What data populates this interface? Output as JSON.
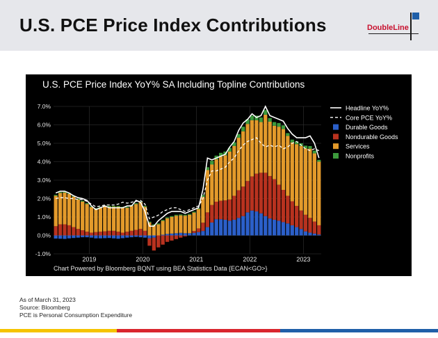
{
  "page": {
    "title": "U.S. PCE Price Index Contributions",
    "logo_text": "DoubleLine",
    "brand_colors": {
      "red": "#c8102e",
      "blue": "#1f5fa8",
      "yellow": "#f5c400"
    }
  },
  "footnotes": [
    "As of March 31, 2023",
    "Source: Bloomberg",
    "PCE is Personal Consumption Expenditure"
  ],
  "chart_data": {
    "type": "bar",
    "title": "U.S. PCE Price Index YoY% SA Including Topline Contributions",
    "source_note": "Chart Powered by Bloomberg BQNT using BEA Statistics Data   {ECAN<GO>}",
    "ylim": [
      -1.0,
      7.0
    ],
    "yticks": [
      "7.0%",
      "6.0%",
      "5.0%",
      "4.0%",
      "3.0%",
      "2.0%",
      "1.0%",
      "0.0%",
      "-1.0%"
    ],
    "ytick_values": [
      7,
      6,
      5,
      4,
      3,
      2,
      1,
      0,
      -1
    ],
    "xticks": [
      {
        "label": "2019",
        "index": 8
      },
      {
        "label": "2020",
        "index": 20
      },
      {
        "label": "2021",
        "index": 32
      },
      {
        "label": "2022",
        "index": 44
      },
      {
        "label": "2023",
        "index": 56
      }
    ],
    "legend": [
      {
        "name": "Headline YoY%",
        "kind": "line",
        "color": "#ffffff"
      },
      {
        "name": "Core PCE YoY%",
        "kind": "dash",
        "color": "#ffffff"
      },
      {
        "name": "Durable Goods",
        "kind": "box",
        "color": "#2b5fc9"
      },
      {
        "name": "Nondurable Goods",
        "kind": "box",
        "color": "#b8321f"
      },
      {
        "name": "Services",
        "kind": "box",
        "color": "#e39a2b"
      },
      {
        "name": "Nonprofits",
        "kind": "box",
        "color": "#3c9a3c"
      }
    ],
    "series": [
      {
        "name": "Durable Goods",
        "values": [
          -0.17,
          -0.18,
          -0.19,
          -0.16,
          -0.14,
          -0.12,
          -0.1,
          -0.1,
          -0.12,
          -0.16,
          -0.16,
          -0.15,
          -0.14,
          -0.16,
          -0.18,
          -0.15,
          -0.12,
          -0.1,
          -0.08,
          -0.1,
          -0.12,
          -0.16,
          -0.12,
          0.0,
          0.04,
          0.08,
          0.1,
          0.12,
          0.14,
          0.12,
          0.12,
          0.14,
          0.18,
          0.24,
          0.45,
          0.7,
          0.88,
          0.88,
          0.85,
          0.8,
          0.85,
          0.95,
          1.05,
          1.25,
          1.35,
          1.3,
          1.2,
          1.05,
          0.92,
          0.85,
          0.8,
          0.72,
          0.65,
          0.55,
          0.45,
          0.35,
          0.22,
          0.15,
          0.1,
          0.05
        ]
      },
      {
        "name": "Nondurable Goods",
        "values": [
          0.5,
          0.6,
          0.6,
          0.55,
          0.45,
          0.35,
          0.28,
          0.2,
          0.15,
          0.18,
          0.2,
          0.22,
          0.25,
          0.25,
          0.2,
          0.15,
          0.2,
          0.25,
          0.3,
          0.35,
          0.25,
          -0.4,
          -0.7,
          -0.65,
          -0.5,
          -0.35,
          -0.28,
          -0.2,
          -0.12,
          -0.05,
          0.0,
          0.1,
          0.2,
          0.45,
          0.8,
          0.95,
          0.95,
          1.0,
          1.05,
          1.15,
          1.3,
          1.5,
          1.6,
          1.7,
          1.85,
          2.05,
          2.2,
          2.35,
          2.3,
          2.2,
          1.95,
          1.75,
          1.5,
          1.3,
          1.15,
          1.0,
          0.9,
          0.8,
          0.65,
          0.5
        ]
      },
      {
        "name": "Services",
        "values": [
          1.65,
          1.7,
          1.72,
          1.7,
          1.65,
          1.6,
          1.55,
          1.5,
          1.38,
          1.25,
          1.3,
          1.35,
          1.3,
          1.3,
          1.35,
          1.35,
          1.3,
          1.35,
          1.4,
          1.45,
          1.3,
          0.7,
          0.55,
          0.6,
          0.75,
          0.85,
          0.9,
          0.95,
          0.95,
          0.95,
          1.0,
          1.0,
          1.05,
          1.4,
          2.3,
          2.2,
          2.3,
          2.4,
          2.45,
          2.6,
          2.7,
          2.85,
          3.0,
          3.1,
          3.05,
          2.9,
          2.75,
          3.15,
          2.95,
          2.9,
          3.15,
          3.3,
          3.25,
          3.2,
          3.35,
          3.5,
          3.6,
          3.75,
          3.7,
          3.45
        ]
      },
      {
        "name": "Nonprofits",
        "values": [
          0.05,
          0.05,
          0.05,
          0.05,
          0.05,
          0.05,
          0.05,
          0.05,
          0.05,
          0.05,
          0.05,
          0.05,
          0.05,
          0.05,
          0.05,
          0.05,
          0.05,
          0.05,
          0.05,
          0.05,
          0.05,
          0.05,
          0.05,
          0.05,
          0.05,
          0.05,
          0.05,
          0.05,
          0.05,
          0.05,
          0.05,
          0.05,
          0.05,
          0.1,
          0.15,
          0.2,
          0.2,
          0.2,
          0.2,
          0.2,
          0.2,
          0.2,
          0.25,
          0.25,
          0.25,
          0.25,
          0.25,
          0.25,
          0.2,
          0.2,
          0.2,
          0.2,
          0.15,
          0.15,
          0.15,
          0.15,
          0.15,
          0.15,
          0.15,
          0.1
        ]
      },
      {
        "name": "Headline YoY%",
        "values": [
          2.3,
          2.4,
          2.4,
          2.3,
          2.15,
          2.05,
          2.0,
          1.9,
          1.6,
          1.4,
          1.5,
          1.6,
          1.5,
          1.5,
          1.5,
          1.5,
          1.6,
          1.6,
          1.9,
          1.8,
          1.3,
          0.5,
          0.5,
          0.8,
          1.0,
          1.2,
          1.3,
          1.3,
          1.3,
          1.2,
          1.3,
          1.4,
          1.5,
          2.5,
          4.2,
          4.1,
          4.2,
          4.3,
          4.4,
          4.8,
          5.1,
          5.7,
          6.1,
          6.3,
          6.6,
          6.4,
          6.5,
          7.0,
          6.5,
          6.4,
          6.3,
          6.2,
          5.8,
          5.5,
          5.3,
          5.3,
          5.3,
          5.4,
          5.0,
          4.2
        ]
      },
      {
        "name": "Core PCE YoY%",
        "values": [
          2.0,
          2.05,
          2.05,
          2.0,
          2.0,
          1.95,
          1.95,
          1.85,
          1.7,
          1.55,
          1.6,
          1.65,
          1.65,
          1.65,
          1.7,
          1.8,
          1.75,
          1.8,
          1.85,
          1.9,
          1.7,
          0.9,
          1.0,
          1.1,
          1.3,
          1.4,
          1.5,
          1.5,
          1.4,
          1.3,
          1.4,
          1.5,
          1.6,
          2.0,
          3.0,
          3.5,
          3.5,
          3.6,
          3.7,
          4.0,
          4.2,
          4.6,
          4.9,
          5.1,
          5.2,
          5.3,
          5.0,
          4.8,
          4.9,
          4.8,
          4.9,
          4.7,
          4.8,
          5.0,
          5.1,
          4.9,
          4.7,
          4.6,
          4.7,
          4.6
        ]
      }
    ]
  }
}
